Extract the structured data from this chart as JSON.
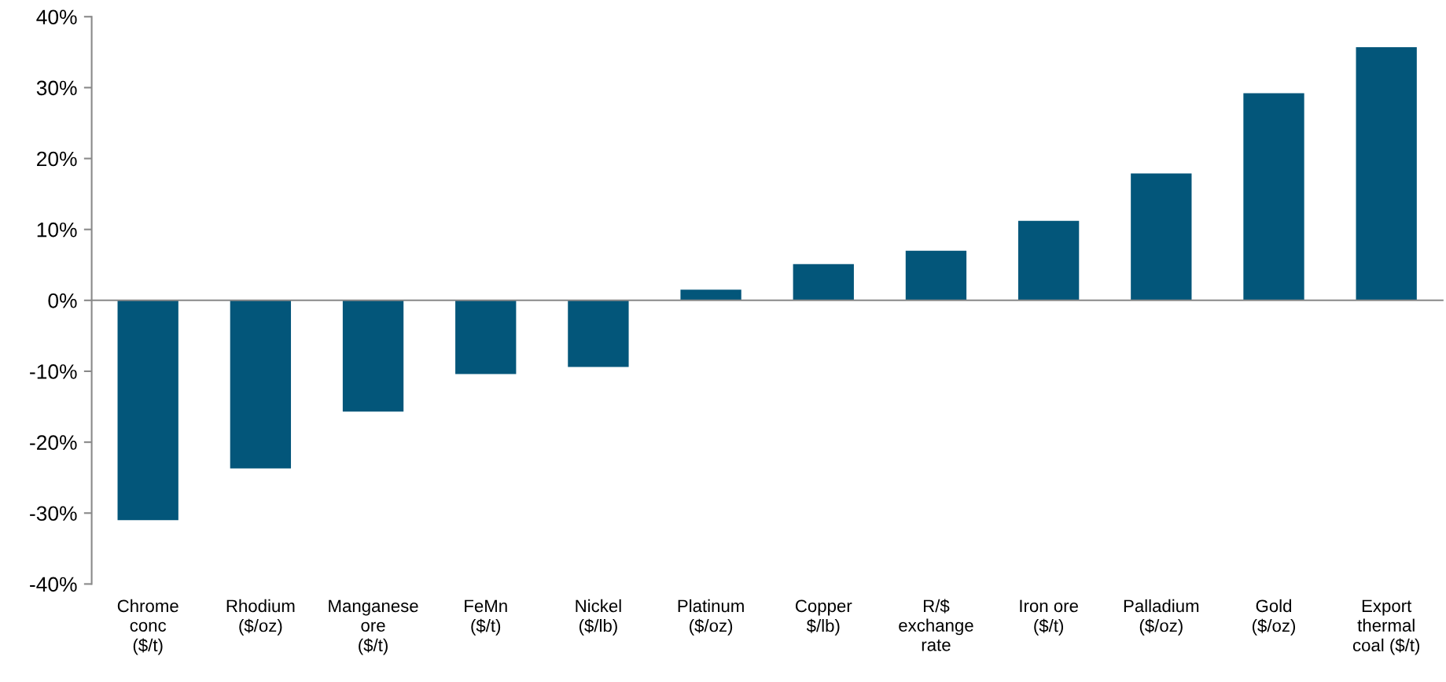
{
  "chart_data": {
    "type": "bar",
    "categories": [
      "Chrome\nconc\n($/t)",
      "Rhodium\n($/oz)",
      "Manganese\nore\n($/t)",
      "FeMn\n($/t)",
      "Nickel\n($/lb)",
      "Platinum\n($/oz)",
      "Copper\n$/lb)",
      "R/$\nexchange\nrate",
      "Iron ore\n($/t)",
      "Palladium\n($/oz)",
      "Gold\n($/oz)",
      "Export\nthermal\ncoal ($/t)"
    ],
    "values": [
      -31.0,
      -23.7,
      -15.7,
      -10.4,
      -9.4,
      1.5,
      5.1,
      7.0,
      11.2,
      17.9,
      29.2,
      35.7
    ],
    "color": "#03567a",
    "ylim": [
      -40,
      40
    ],
    "yticks": [
      {
        "value": -40,
        "label": "-40%"
      },
      {
        "value": -30,
        "label": "-30%"
      },
      {
        "value": -20,
        "label": "-20%"
      },
      {
        "value": -10,
        "label": "-10%"
      },
      {
        "value": 0,
        "label": "0%"
      },
      {
        "value": 10,
        "label": "10%"
      },
      {
        "value": 20,
        "label": "20%"
      },
      {
        "value": 30,
        "label": "30%"
      },
      {
        "value": 40,
        "label": "40%"
      }
    ]
  }
}
